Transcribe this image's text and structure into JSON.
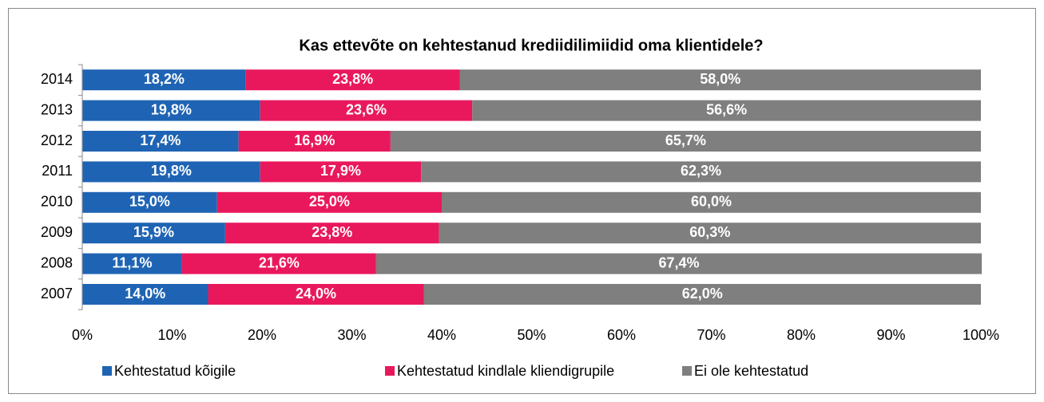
{
  "chart_data": {
    "type": "stacked_barh",
    "title": "Kas ettevõte on kehtestanud krediidilimiidid oma klientidele?",
    "categories": [
      "2014",
      "2013",
      "2012",
      "2011",
      "2010",
      "2009",
      "2008",
      "2007"
    ],
    "series": [
      {
        "name": "Kehtestatud kõigile",
        "color": "#1f64b4",
        "values": [
          18.2,
          19.8,
          17.4,
          19.8,
          15.0,
          15.9,
          11.1,
          14.0
        ],
        "value_labels": [
          "18,2%",
          "19,8%",
          "17,4%",
          "19,8%",
          "15,0%",
          "15,9%",
          "11,1%",
          "14,0%"
        ]
      },
      {
        "name": "Kehtestatud kindlale kliendigrupile",
        "color": "#e9185c",
        "values": [
          23.8,
          23.6,
          16.9,
          17.9,
          25.0,
          23.8,
          21.6,
          24.0
        ],
        "value_labels": [
          "23,8%",
          "23,6%",
          "16,9%",
          "17,9%",
          "25,0%",
          "23,8%",
          "21,6%",
          "24,0%"
        ]
      },
      {
        "name": "Ei ole kehtestatud",
        "color": "#7f7f7f",
        "values": [
          58.0,
          56.6,
          65.7,
          62.3,
          60.0,
          60.3,
          67.4,
          62.0
        ],
        "value_labels": [
          "58,0%",
          "56,6%",
          "65,7%",
          "62,3%",
          "60,0%",
          "60,3%",
          "67,4%",
          "62,0%"
        ]
      }
    ],
    "xlim": [
      0,
      100
    ],
    "xticks": [
      {
        "value": 0,
        "label": "0%"
      },
      {
        "value": 10,
        "label": "10%"
      },
      {
        "value": 20,
        "label": "20%"
      },
      {
        "value": 30,
        "label": "30%"
      },
      {
        "value": 40,
        "label": "40%"
      },
      {
        "value": 50,
        "label": "50%"
      },
      {
        "value": 60,
        "label": "60%"
      },
      {
        "value": 70,
        "label": "70%"
      },
      {
        "value": 80,
        "label": "80%"
      },
      {
        "value": 90,
        "label": "90%"
      },
      {
        "value": 100,
        "label": "100%"
      }
    ],
    "legend": "bottom"
  }
}
